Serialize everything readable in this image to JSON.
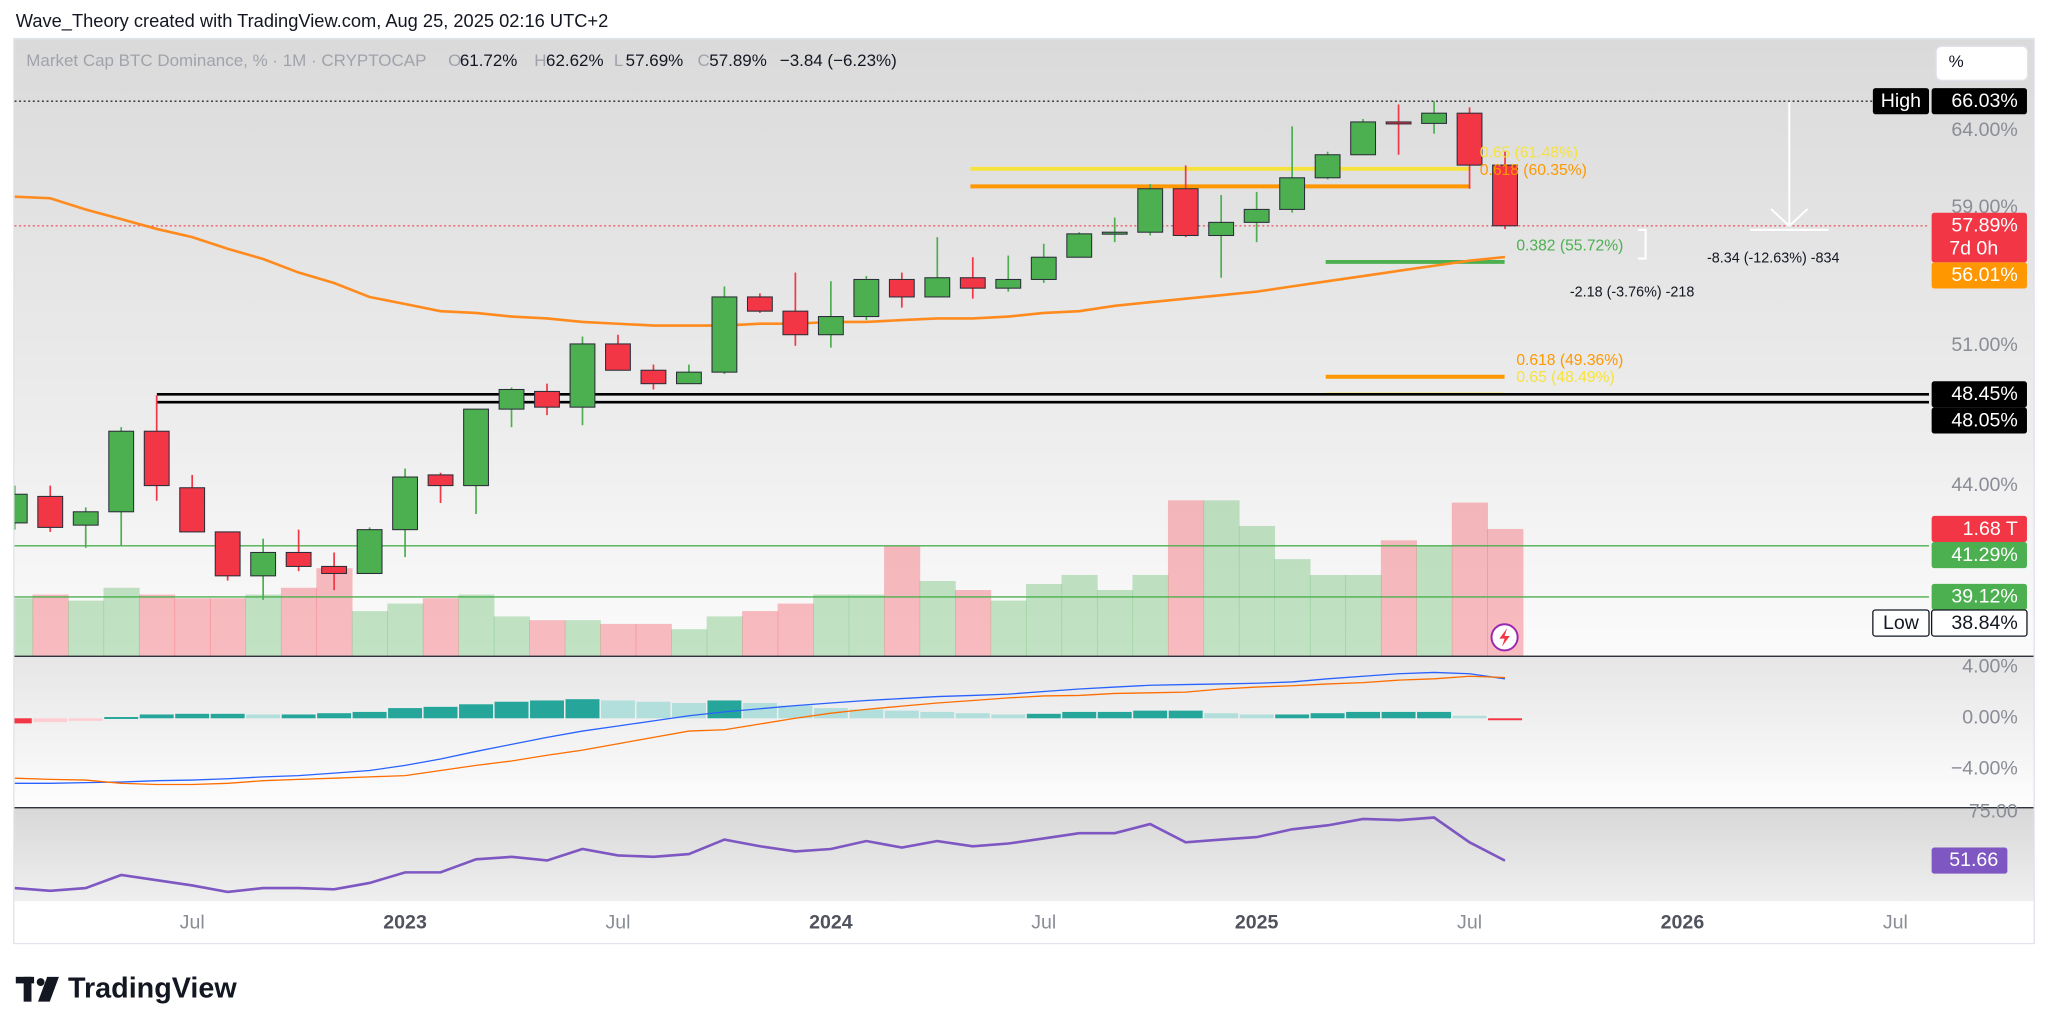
{
  "chart_data": {
    "type": "candlestick",
    "attribution": "Wave_Theory created with TradingView.com, Aug 25, 2025 02:16 UTC+2",
    "symbol": "Market Cap BTC Dominance, % · 1M · CRYPTOCAP",
    "legend": [
      {
        "key": "O",
        "value": "61.72%"
      },
      {
        "key": "H",
        "value": "62.62%"
      },
      {
        "key": "L",
        "value": "57.69%"
      },
      {
        "key": "C",
        "value": "57.89%"
      }
    ],
    "change": "−3.84 (−6.23%)",
    "scale_button": "%",
    "brand": "TradingView",
    "categories": [
      null,
      null,
      null,
      null,
      null,
      "Jul",
      null,
      null,
      null,
      null,
      null,
      "2023",
      null,
      null,
      null,
      null,
      null,
      "Jul",
      null,
      null,
      null,
      null,
      null,
      "2024",
      null,
      null,
      null,
      null,
      null,
      "Jul",
      null,
      null,
      null,
      null,
      null,
      "2025",
      null,
      null,
      null,
      null,
      null,
      "Jul",
      null,
      null,
      null,
      null,
      null,
      "2026",
      null,
      null,
      null,
      null,
      null,
      "Jul"
    ],
    "log": true,
    "grid": false,
    "ylim": [
      36.77,
      70.5
    ],
    "yticks": [
      {
        "value": 64,
        "label": "64.00%"
      },
      {
        "value": 59,
        "label": "59.00%"
      },
      {
        "value": 51,
        "label": "51.00%"
      },
      {
        "value": 44,
        "label": "44.00%"
      }
    ],
    "up_color": "#4caf50",
    "down_color": "#f23645",
    "wick_color": "#2a2e39",
    "ohlc": {
      "open": [
        42.3,
        43.5,
        42.2,
        42.8,
        46.6,
        43.9,
        41.9,
        40.0,
        41.0,
        40.4,
        40.1,
        42.0,
        44.5,
        44.0,
        47.7,
        48.6,
        47.8,
        51.1,
        49.7,
        49.0,
        49.6,
        53.7,
        52.9,
        51.6,
        52.6,
        54.7,
        53.7,
        54.8,
        54.2,
        54.7,
        56.0,
        57.4,
        57.5,
        60.2,
        57.3,
        58.1,
        58.9,
        60.9,
        62.4,
        64.6,
        64.5,
        65.2,
        61.72,
        null,
        null,
        null,
        null,
        null,
        null,
        null,
        null,
        null,
        null,
        null
      ],
      "high": [
        44.0,
        44.0,
        43.0,
        46.8,
        48.4,
        44.5,
        41.9,
        41.6,
        42.0,
        41.0,
        42.1,
        44.8,
        44.6,
        47.7,
        48.8,
        49.0,
        51.5,
        51.6,
        50.0,
        50.0,
        54.3,
        53.9,
        55.1,
        54.6,
        54.9,
        55.1,
        57.2,
        56.0,
        56.1,
        56.8,
        57.5,
        58.4,
        60.5,
        61.7,
        59.8,
        60.0,
        64.3,
        62.6,
        64.8,
        65.8,
        66.03,
        65.6,
        62.62,
        null,
        null,
        null,
        null,
        null,
        null,
        null,
        null,
        null,
        null,
        null
      ],
      "low": [
        42.0,
        41.9,
        41.2,
        41.3,
        43.3,
        41.9,
        39.8,
        39.0,
        40.2,
        39.4,
        40.1,
        40.8,
        43.2,
        42.7,
        46.8,
        47.4,
        46.9,
        49.7,
        48.7,
        49.0,
        49.5,
        52.8,
        51.0,
        50.9,
        52.4,
        53.1,
        53.7,
        53.6,
        54.0,
        54.5,
        56.0,
        56.9,
        57.3,
        57.2,
        54.8,
        56.9,
        58.7,
        60.8,
        62.4,
        62.4,
        63.8,
        60.2,
        57.69,
        null,
        null,
        null,
        null,
        null,
        null,
        null,
        null,
        null,
        null,
        null
      ],
      "close": [
        43.6,
        42.1,
        42.8,
        46.6,
        44.0,
        41.9,
        40.0,
        41.0,
        40.4,
        40.1,
        42.0,
        44.4,
        44.0,
        47.7,
        48.7,
        47.8,
        51.1,
        49.7,
        49.0,
        49.6,
        53.7,
        52.9,
        51.6,
        52.6,
        54.7,
        53.7,
        54.8,
        54.2,
        54.7,
        56.0,
        57.4,
        57.5,
        60.2,
        57.3,
        58.1,
        58.9,
        60.9,
        62.4,
        64.6,
        64.5,
        65.2,
        61.72,
        57.89,
        null,
        null,
        null,
        null,
        null,
        null,
        null,
        null,
        null,
        null,
        null
      ]
    },
    "ma": {
      "color": "#ff8a1e",
      "values": [
        59.7,
        59.6,
        58.9,
        58.3,
        57.7,
        57.2,
        56.5,
        55.9,
        55.1,
        54.5,
        53.7,
        53.3,
        52.9,
        52.8,
        52.6,
        52.5,
        52.3,
        52.2,
        52.1,
        52.1,
        52.1,
        52.2,
        52.2,
        52.3,
        52.3,
        52.4,
        52.5,
        52.5,
        52.6,
        52.8,
        52.9,
        53.2,
        53.4,
        53.6,
        53.8,
        54.0,
        54.3,
        54.6,
        54.9,
        55.2,
        55.5,
        55.8,
        56.01,
        null,
        null,
        null,
        null,
        null,
        null,
        null,
        null,
        null,
        null,
        null
      ]
    },
    "volume": {
      "ylim": [
        0,
        8.18
      ],
      "values": [
        0.76,
        0.81,
        0.73,
        0.9,
        0.81,
        0.76,
        0.76,
        0.81,
        0.9,
        1.16,
        0.59,
        0.69,
        0.76,
        0.81,
        0.52,
        0.47,
        0.47,
        0.42,
        0.42,
        0.35,
        0.52,
        0.59,
        0.69,
        0.81,
        0.81,
        1.46,
        0.99,
        0.87,
        0.73,
        0.95,
        1.07,
        0.87,
        1.07,
        2.06,
        2.06,
        1.72,
        1.28,
        1.07,
        1.07,
        1.53,
        1.46,
        2.03,
        1.68,
        null,
        null,
        null,
        null,
        null,
        null,
        null,
        null,
        null,
        null,
        null
      ]
    },
    "fib": [
      {
        "label": "0.65 (61.48%)",
        "value": 61.48,
        "color": "#f7e23b"
      },
      {
        "label": "0.618 (60.35%)",
        "value": 60.35,
        "color": "#ff9800"
      },
      {
        "label": "0.382 (55.72%)",
        "value": 55.72,
        "color": "#4caf50"
      },
      {
        "label": "0.618 (49.36%)",
        "value": 49.36,
        "color": "#ff9800"
      },
      {
        "label": "0.65 (48.49%)",
        "value": 48.49,
        "color": "#f7e23b"
      }
    ],
    "measures": [
      "-8.34 (-12.63%) -834",
      "-2.18 (-3.76%) -218"
    ],
    "price_labels": [
      {
        "value": 66.03,
        "label": "66.03%",
        "tag": "High",
        "color": "#000000",
        "line": "dotted"
      },
      {
        "value": 57.89,
        "label": "57.89%",
        "sub": "7d 0h",
        "color": "#f23645",
        "line": "dotted"
      },
      {
        "value": 56.01,
        "label": "56.01%",
        "color": "#ff9800"
      },
      {
        "value": 48.45,
        "label": "48.45%",
        "color": "#000000",
        "line": "solid"
      },
      {
        "value": 48.05,
        "label": "48.05%",
        "color": "#000000",
        "line": "solid"
      },
      {
        "value": 1.68,
        "label": "1.68 T",
        "color": "#f23645",
        "scale": "volume"
      },
      {
        "value": 41.29,
        "label": "41.29%",
        "color": "#4caf50",
        "line": "solid"
      },
      {
        "value": 39.12,
        "label": "39.12%",
        "color": "#4caf50",
        "line": "solid"
      },
      {
        "value": 38.84,
        "label": "38.84%",
        "tag": "Low",
        "color": "#ffffff"
      }
    ],
    "macd": {
      "ylim": [
        -6.97,
        4.82
      ],
      "yticks": [
        {
          "value": 4,
          "label": "4.00%"
        },
        {
          "value": 0,
          "label": "0.00%"
        },
        {
          "value": -4,
          "label": "−4.00%"
        }
      ],
      "macd": {
        "color": "#2962ff",
        "values": [
          -5.1,
          -5.1,
          -5.05,
          -5.0,
          -4.9,
          -4.85,
          -4.75,
          -4.6,
          -4.5,
          -4.3,
          -4.1,
          -3.7,
          -3.2,
          -2.6,
          -2.05,
          -1.5,
          -1.0,
          -0.6,
          -0.2,
          0.2,
          0.5,
          0.75,
          1.0,
          1.2,
          1.4,
          1.55,
          1.7,
          1.8,
          1.9,
          2.1,
          2.3,
          2.45,
          2.6,
          2.65,
          2.7,
          2.75,
          2.85,
          3.1,
          3.3,
          3.5,
          3.6,
          3.5,
          3.1,
          null,
          null,
          null,
          null,
          null,
          null,
          null,
          null,
          null,
          null,
          null
        ]
      },
      "signal": {
        "color": "#ff6d00",
        "values": [
          -4.7,
          -4.8,
          -4.85,
          -5.1,
          -5.2,
          -5.2,
          -5.1,
          -4.9,
          -4.8,
          -4.7,
          -4.6,
          -4.5,
          -4.1,
          -3.7,
          -3.35,
          -2.9,
          -2.5,
          -2.0,
          -1.5,
          -1.0,
          -0.9,
          -0.45,
          0.0,
          0.4,
          0.7,
          0.95,
          1.2,
          1.4,
          1.6,
          1.75,
          1.8,
          1.95,
          2.0,
          2.05,
          2.3,
          2.45,
          2.55,
          2.7,
          2.8,
          3.0,
          3.1,
          3.3,
          3.2,
          null,
          null,
          null,
          null,
          null,
          null,
          null,
          null,
          null,
          null,
          null
        ]
      },
      "hist": {
        "colors": [
          "#26a69a",
          "#b2dfdb",
          "#ffcdd2",
          "#f23645"
        ],
        "values": [
          -0.4,
          -0.3,
          -0.2,
          0.1,
          0.3,
          0.35,
          0.35,
          0.3,
          0.3,
          0.4,
          0.5,
          0.8,
          0.9,
          1.1,
          1.3,
          1.4,
          1.5,
          1.4,
          1.3,
          1.2,
          1.4,
          1.2,
          1.0,
          0.8,
          0.7,
          0.6,
          0.5,
          0.4,
          0.3,
          0.35,
          0.5,
          0.5,
          0.6,
          0.6,
          0.4,
          0.3,
          0.3,
          0.4,
          0.5,
          0.5,
          0.5,
          0.2,
          -0.1,
          null,
          null,
          null,
          null,
          null,
          null,
          null,
          null,
          null,
          null,
          null
        ]
      }
    },
    "rsi": {
      "color": "#7e57c2",
      "ylim": [
        32.1,
        76.9
      ],
      "yticks": [
        {
          "value": 75,
          "label": "75.00"
        }
      ],
      "values": [
        38.4,
        37.1,
        38.4,
        44.7,
        42.2,
        39.7,
        36.5,
        38.4,
        38.4,
        37.8,
        40.9,
        46.0,
        46.0,
        52.3,
        53.5,
        51.7,
        57.3,
        54.2,
        53.5,
        54.8,
        61.8,
        58.6,
        56.1,
        57.3,
        61.1,
        58.0,
        61.1,
        58.6,
        59.9,
        62.4,
        64.9,
        64.9,
        69.3,
        60.5,
        61.8,
        63.0,
        66.8,
        68.7,
        71.8,
        71.2,
        72.5,
        60.5,
        51.66,
        null,
        null,
        null,
        null,
        null,
        null,
        null,
        null,
        null,
        null,
        null
      ]
    }
  }
}
